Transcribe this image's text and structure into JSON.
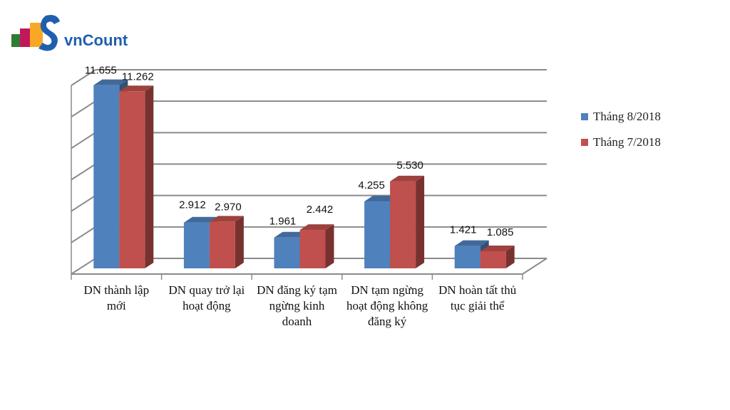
{
  "brand": {
    "name": "vnCount"
  },
  "legend": [
    {
      "label": "Tháng 8/2018",
      "color": "#4f81bd"
    },
    {
      "label": "Tháng 7/2018",
      "color": "#c0504d"
    }
  ],
  "chart_data": {
    "type": "bar",
    "categories": [
      "DN thành lập mới",
      "DN quay trở lại hoạt động",
      "DN đăng ký tạm ngừng kinh doanh",
      "DN tạm ngừng hoạt động không đăng ký",
      "DN hoàn tất thủ tục giải thể"
    ],
    "series": [
      {
        "name": "Tháng 8/2018",
        "values": [
          11655,
          2912,
          1961,
          4255,
          1421
        ],
        "labels": [
          "11.655",
          "2.912",
          "1.961",
          "4.255",
          "1.421"
        ],
        "color": "#4f81bd"
      },
      {
        "name": "Tháng 7/2018",
        "values": [
          11262,
          2970,
          2442,
          5530,
          1085
        ],
        "labels": [
          "11.262",
          "2.970",
          "2.442",
          "5.530",
          "1.085"
        ],
        "color": "#c0504d"
      }
    ],
    "ylim": [
      0,
      12000
    ],
    "grid": true,
    "legend_position": "right",
    "style": "3d-clustered"
  }
}
